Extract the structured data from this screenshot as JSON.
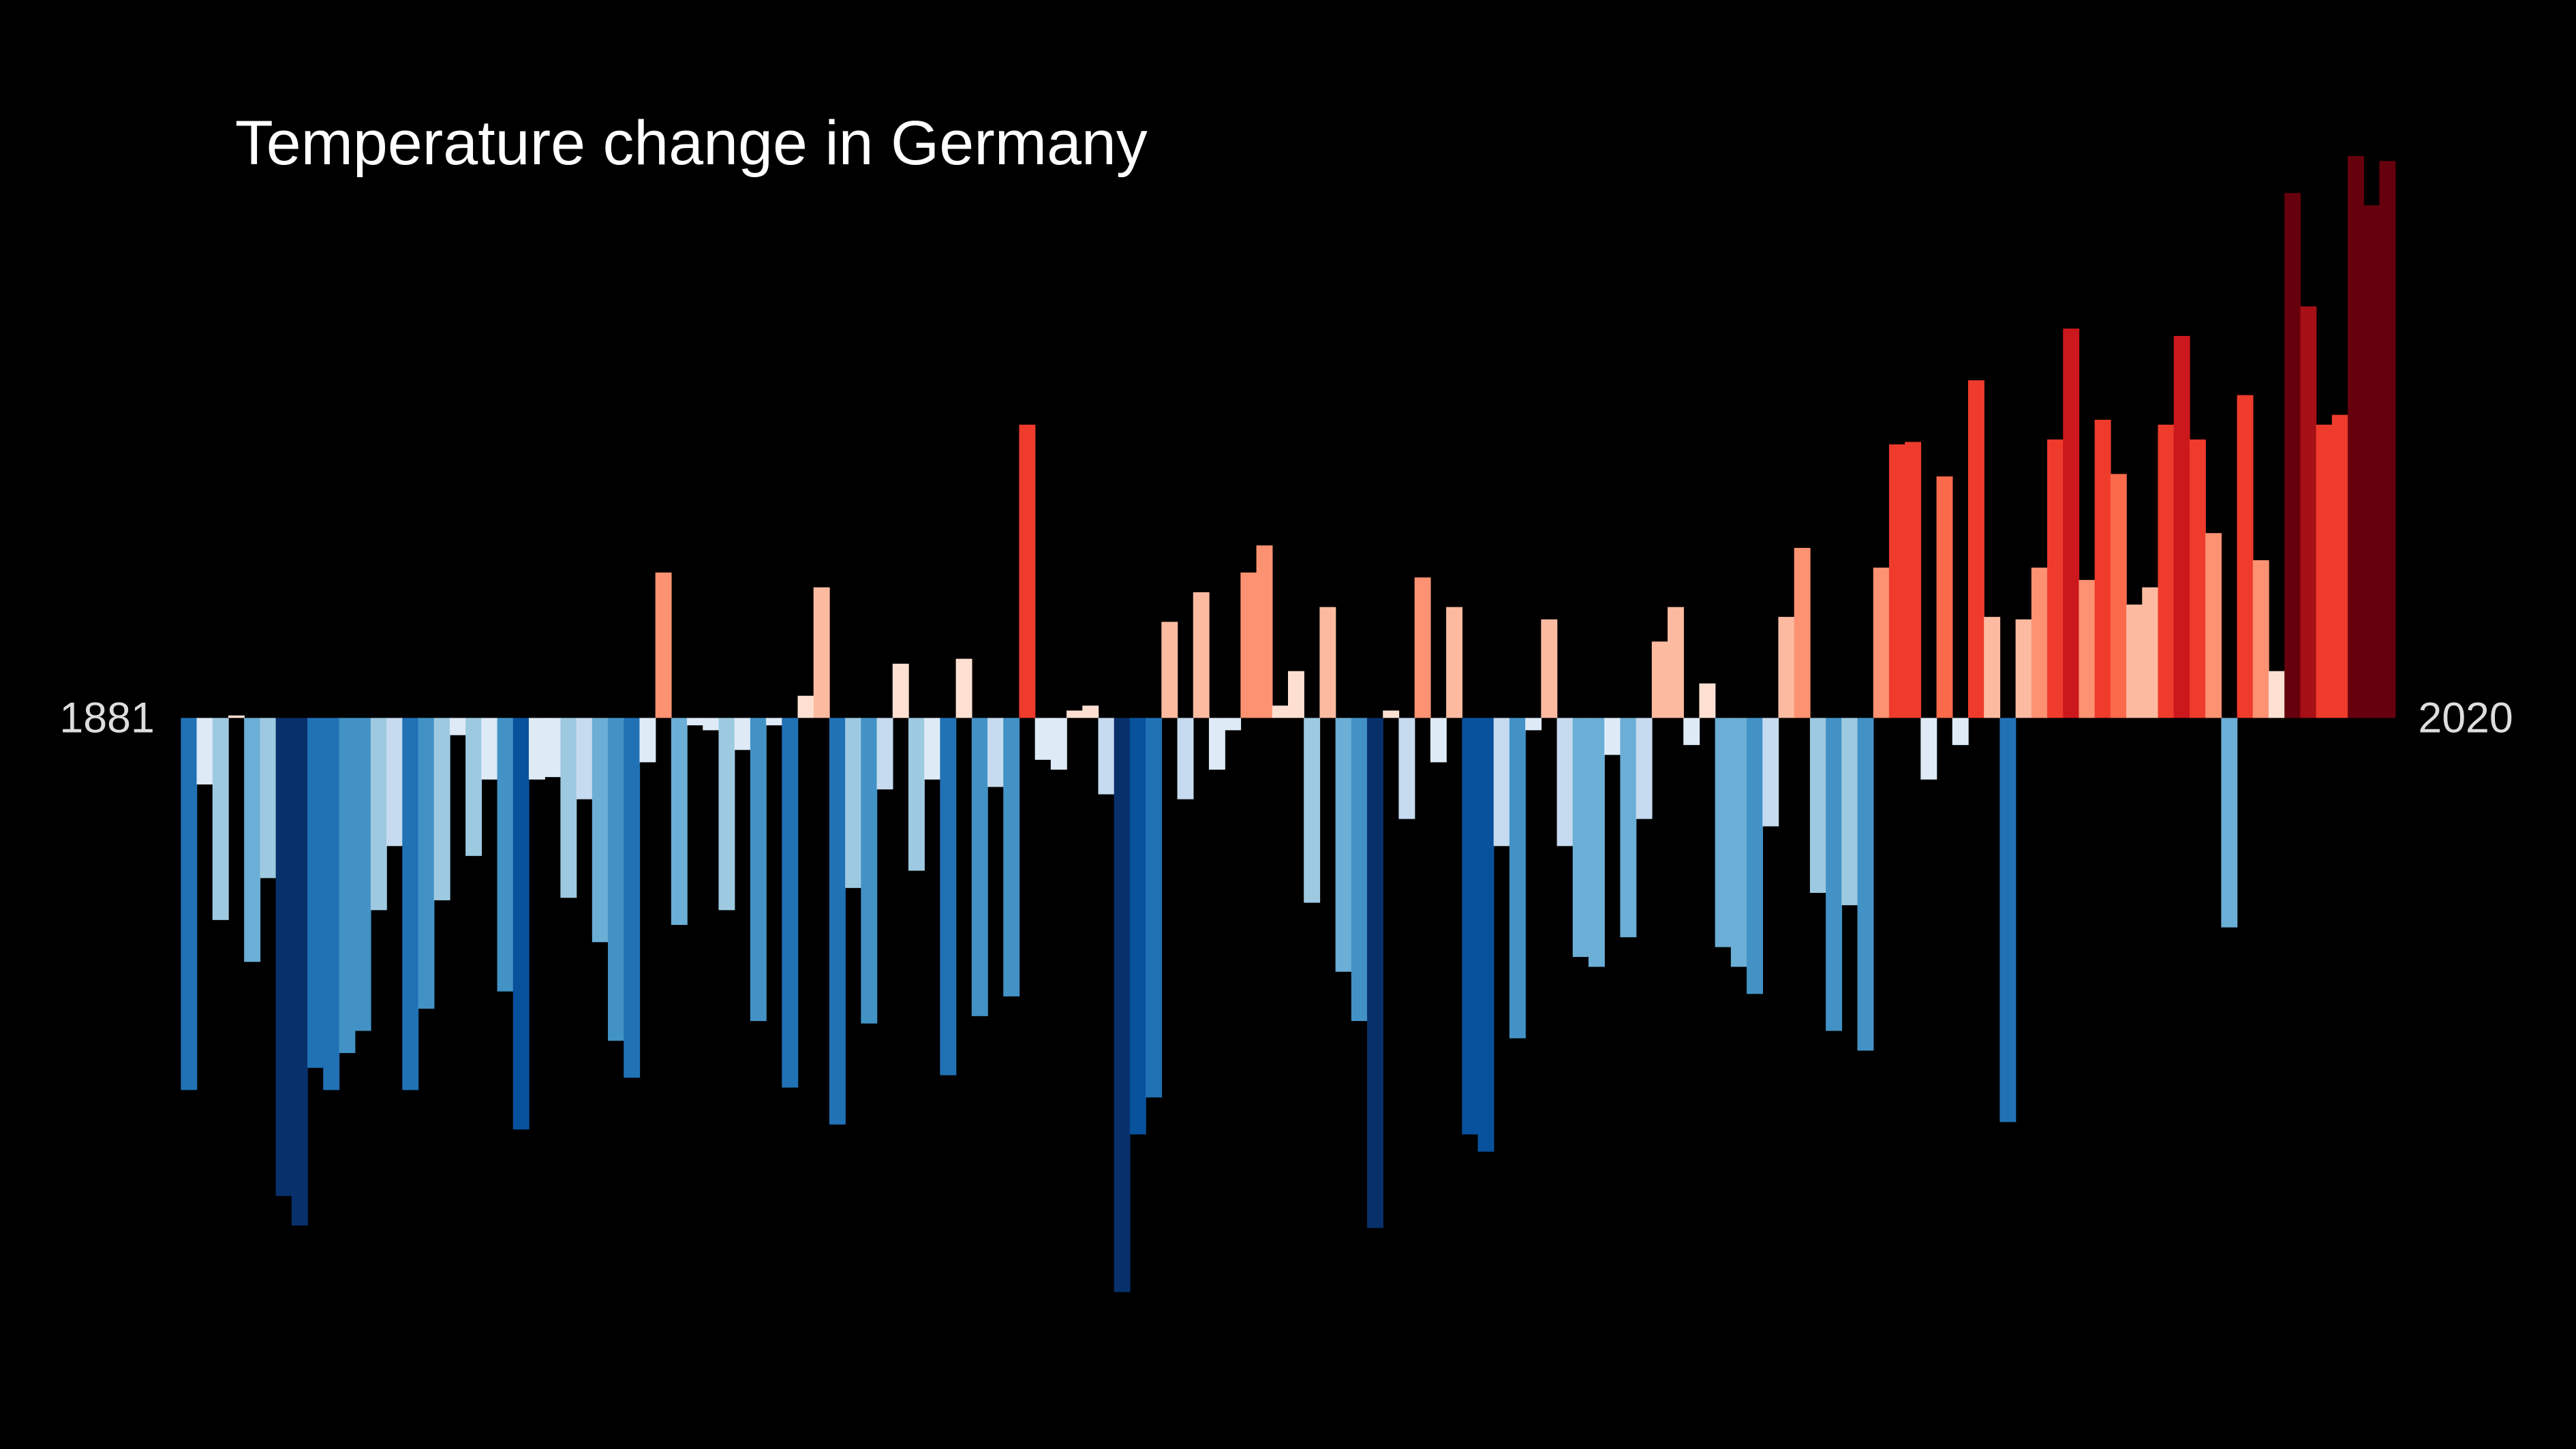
{
  "chart_data": {
    "type": "bar",
    "title": "Temperature change in Germany",
    "categories": [
      "1881",
      null,
      null,
      null,
      null,
      null,
      null,
      null,
      null,
      null,
      null,
      null,
      null,
      null,
      null,
      null,
      null,
      null,
      null,
      null,
      null,
      null,
      null,
      null,
      null,
      null,
      null,
      null,
      null,
      null,
      null,
      null,
      null,
      null,
      null,
      null,
      null,
      null,
      null,
      null,
      null,
      null,
      null,
      null,
      null,
      null,
      null,
      null,
      null,
      null,
      null,
      null,
      null,
      null,
      null,
      null,
      null,
      null,
      null,
      null,
      null,
      null,
      null,
      null,
      null,
      null,
      null,
      null,
      null,
      null,
      null,
      null,
      null,
      null,
      null,
      null,
      null,
      null,
      null,
      null,
      null,
      null,
      null,
      null,
      null,
      null,
      null,
      null,
      null,
      null,
      null,
      null,
      null,
      null,
      null,
      null,
      null,
      null,
      null,
      null,
      null,
      null,
      null,
      null,
      null,
      null,
      null,
      null,
      null,
      null,
      null,
      null,
      null,
      null,
      null,
      null,
      null,
      null,
      null,
      null,
      null,
      null,
      null,
      null,
      null,
      null,
      null,
      null,
      null,
      null,
      null,
      null,
      null,
      null,
      null,
      null,
      null,
      null,
      null,
      "2020"
    ],
    "values": [
      -1.51,
      -0.27,
      -0.82,
      0.01,
      -0.99,
      -0.65,
      -1.94,
      -2.06,
      -1.42,
      -1.51,
      -1.36,
      -1.27,
      -0.78,
      -0.52,
      -1.51,
      -1.18,
      -0.74,
      -0.07,
      -0.56,
      -0.25,
      -1.11,
      -1.67,
      -0.25,
      -0.24,
      -0.73,
      -0.33,
      -0.91,
      -1.31,
      -1.46,
      -0.18,
      0.59,
      -0.84,
      -0.03,
      -0.05,
      -0.78,
      -0.13,
      -1.23,
      -0.03,
      -1.5,
      0.09,
      0.53,
      -1.65,
      -0.69,
      -1.24,
      -0.29,
      0.22,
      -0.62,
      -0.25,
      -1.45,
      0.24,
      -1.21,
      -0.28,
      -1.13,
      1.19,
      -0.17,
      -0.21,
      0.03,
      0.05,
      -0.31,
      -2.33,
      -1.69,
      -1.54,
      0.39,
      -0.33,
      0.51,
      -0.21,
      -0.05,
      0.59,
      0.7,
      0.05,
      0.19,
      -0.75,
      0.45,
      -1.03,
      -1.23,
      -2.07,
      0.03,
      -0.41,
      0.57,
      -0.18,
      0.45,
      -1.69,
      -1.76,
      -0.52,
      -1.3,
      -0.05,
      0.4,
      -0.52,
      -0.97,
      -1.01,
      -0.15,
      -0.89,
      -0.41,
      0.31,
      0.45,
      -0.11,
      0.14,
      -0.93,
      -1.01,
      -1.12,
      -0.44,
      0.41,
      0.69,
      -0.71,
      -1.27,
      -0.76,
      -1.35,
      0.61,
      1.11,
      1.12,
      -0.25,
      0.98,
      -0.11,
      1.37,
      0.41,
      -1.64,
      0.4,
      0.61,
      1.13,
      1.58,
      0.56,
      1.21,
      0.99,
      0.46,
      0.53,
      1.19,
      1.55,
      1.13,
      0.75,
      -0.85,
      1.31,
      0.64,
      0.19,
      2.13,
      1.67,
      1.19,
      1.23,
      2.28,
      2.08,
      2.26
    ],
    "ylim": [
      -2.6,
      2.6
    ],
    "clim": [
      -2.2,
      2.2
    ],
    "colormap": [
      "#08306b",
      "#08519c",
      "#2171b5",
      "#4292c6",
      "#6baed6",
      "#9ecae1",
      "#c6dbef",
      "#deebf7",
      "#fee0d2",
      "#fcbba1",
      "#fc9272",
      "#fb6a4a",
      "#ef3b2c",
      "#cb181d",
      "#a50f15",
      "#67000d"
    ],
    "background": "#000000"
  }
}
